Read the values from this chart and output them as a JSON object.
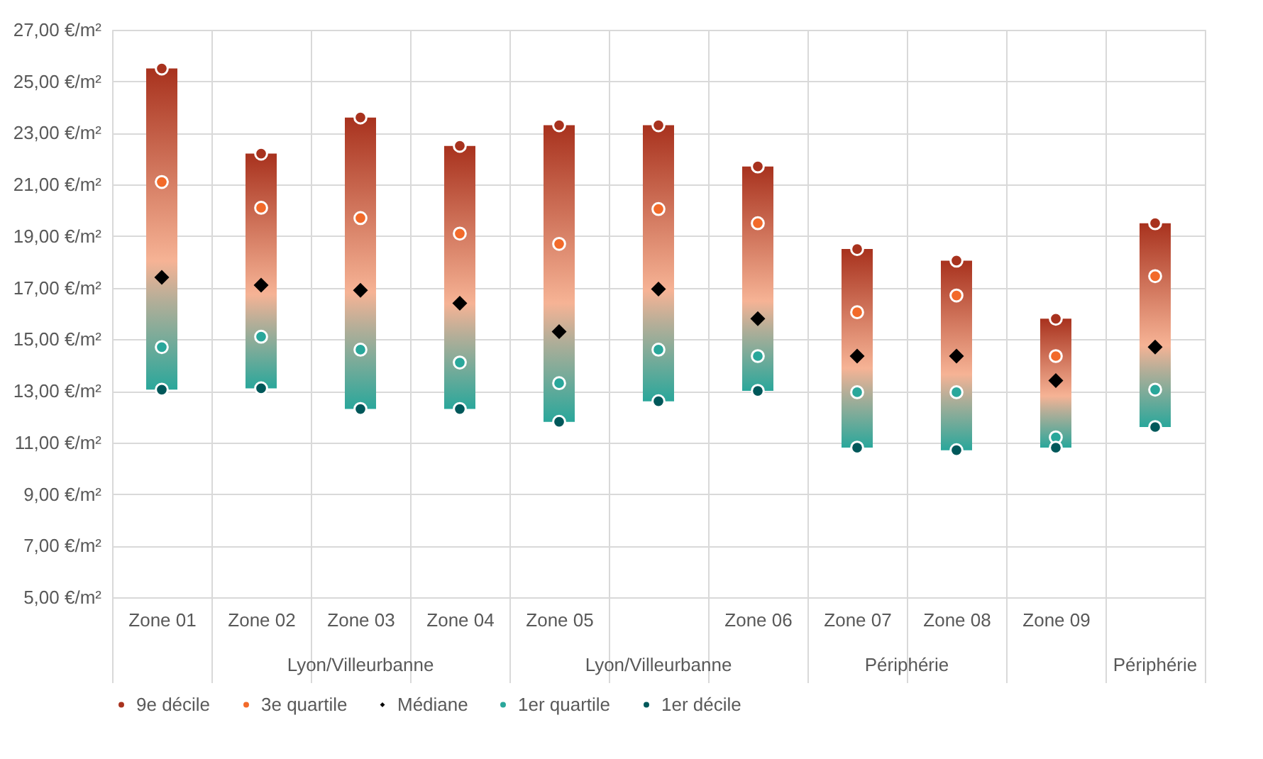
{
  "chart_data": {
    "type": "scatter",
    "categories": [
      "Zone 01",
      "Zone 02",
      "Zone 03",
      "Zone 04",
      "Zone 05",
      null,
      "Zone 06",
      "Zone 07",
      "Zone 08",
      "Zone 09",
      null
    ],
    "annotations": [
      "Lyon/Villeurbanne",
      "Lyon/Villeurbanne",
      "Périphérie",
      "Périphérie"
    ],
    "series": [
      {
        "type": "bar",
        "color": "#a8321e",
        "base": [
          13.05,
          13.1,
          12.3,
          12.3,
          11.8,
          12.6,
          13.0,
          10.8,
          10.7,
          10.8,
          11.6
        ],
        "values": [
          12.45,
          9.1,
          11.3,
          10.2,
          11.5,
          10.7,
          8.7,
          7.7,
          7.35,
          5.0,
          7.9
        ]
      },
      {
        "name": "9e décile",
        "color": "#a8321e",
        "marker": "circle",
        "values": [
          25.5,
          22.2,
          23.6,
          22.5,
          23.3,
          23.3,
          21.7,
          18.5,
          18.05,
          15.8,
          19.5
        ]
      },
      {
        "name": "3e quartile",
        "color": "#f26a2a",
        "marker": "circle",
        "values": [
          21.1,
          20.1,
          19.7,
          19.1,
          18.7,
          20.05,
          19.5,
          16.05,
          16.7,
          14.35,
          17.45
        ]
      },
      {
        "name": "Médiane",
        "color": "#000000",
        "marker": "diamond",
        "values": [
          17.4,
          17.1,
          16.9,
          16.4,
          15.3,
          16.95,
          15.8,
          14.35,
          14.35,
          13.4,
          14.7
        ]
      },
      {
        "name": "1er quartile",
        "color": "#2aa79b",
        "marker": "circle",
        "values": [
          14.7,
          15.1,
          14.6,
          14.1,
          13.3,
          14.6,
          14.35,
          12.95,
          12.95,
          11.2,
          13.05
        ]
      },
      {
        "name": "1er décile",
        "color": "#00585a",
        "marker": "circle",
        "values": [
          13.05,
          13.1,
          12.3,
          12.3,
          11.8,
          12.6,
          13.0,
          10.8,
          10.7,
          10.8,
          11.6
        ]
      }
    ],
    "ylim": [
      5,
      27
    ],
    "yticks": [
      {
        "value": 5,
        "label": "5,00 €/m²"
      },
      {
        "value": 7,
        "label": "7,00 €/m²"
      },
      {
        "value": 9,
        "label": "9,00 €/m²"
      },
      {
        "value": 11,
        "label": "11,00 €/m²"
      },
      {
        "value": 13,
        "label": "13,00 €/m²"
      },
      {
        "value": 15,
        "label": "15,00 €/m²"
      },
      {
        "value": 17,
        "label": "17,00 €/m²"
      },
      {
        "value": 19,
        "label": "19,00 €/m²"
      },
      {
        "value": 21,
        "label": "21,00 €/m²"
      },
      {
        "value": 23,
        "label": "23,00 €/m²"
      },
      {
        "value": 25,
        "label": "25,00 €/m²"
      },
      {
        "value": 27,
        "label": "27,00 €/m²"
      }
    ],
    "grid": true,
    "legend": "bottom"
  }
}
